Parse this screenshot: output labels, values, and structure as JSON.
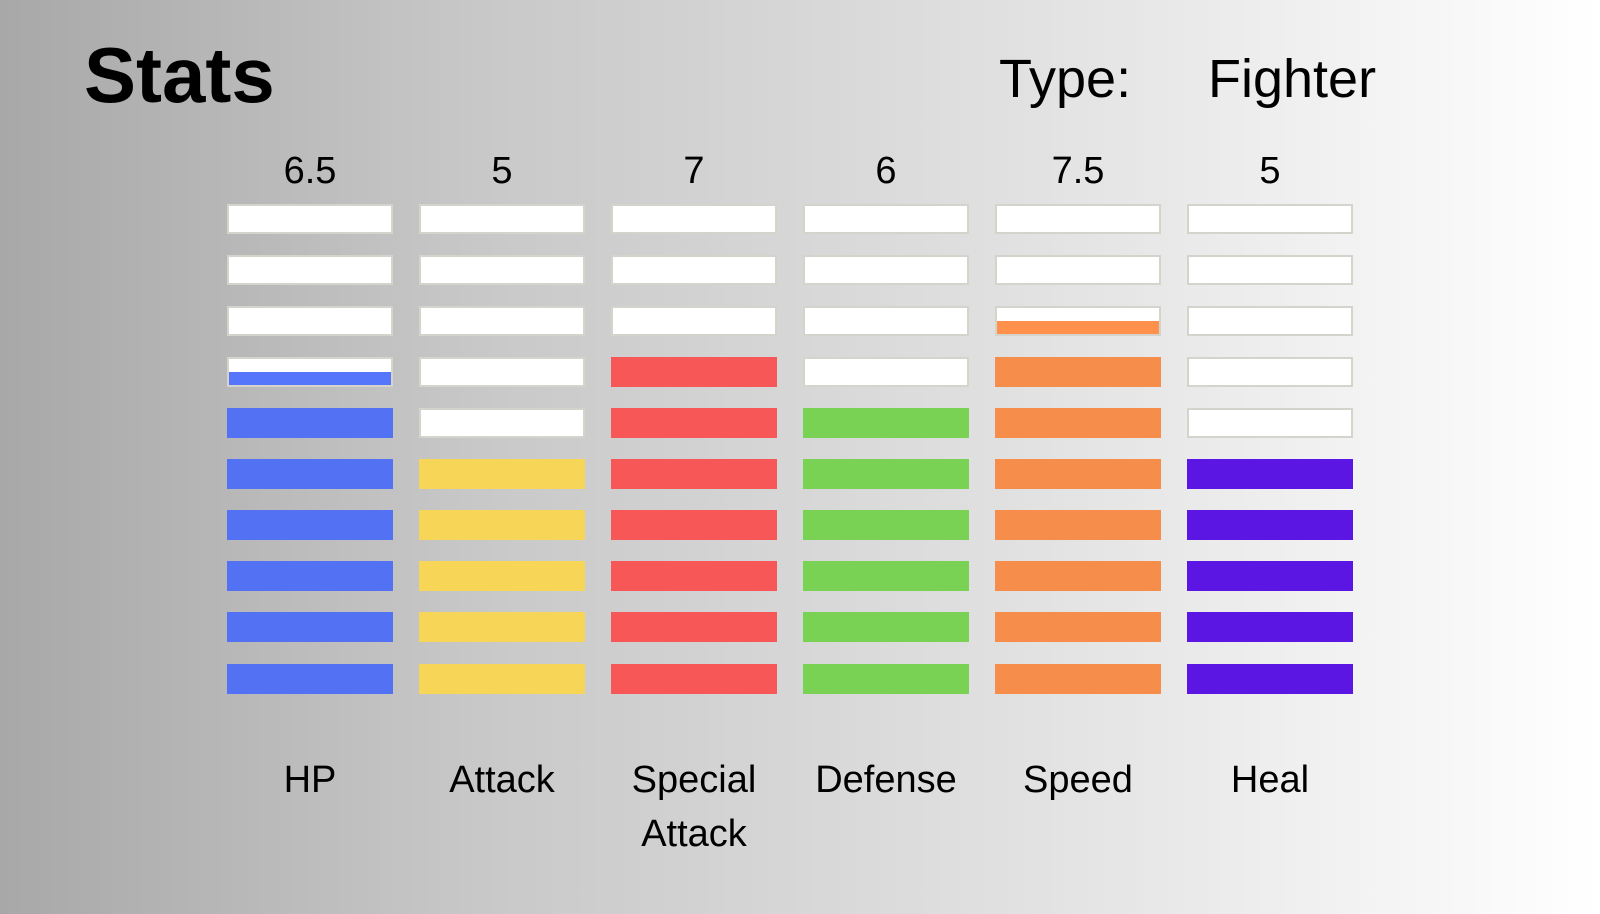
{
  "header": {
    "title": "Stats",
    "type_label": "Type:",
    "type_value": "Fighter"
  },
  "chart_data": {
    "type": "bar",
    "max_segments": 10,
    "categories": [
      "HP",
      "Attack",
      "Special Attack",
      "Defense",
      "Speed",
      "Heal"
    ],
    "value_labels": [
      "6.5",
      "5",
      "7",
      "6",
      "7.5",
      "5"
    ],
    "values": [
      6.5,
      5,
      7,
      6,
      7.5,
      5
    ],
    "colors": [
      "#5575fb",
      "#ffdc5a",
      "#ff5a5a",
      "#7ed957",
      "#ff914d",
      "#5e17eb"
    ],
    "empty_color": "#ffffff"
  }
}
